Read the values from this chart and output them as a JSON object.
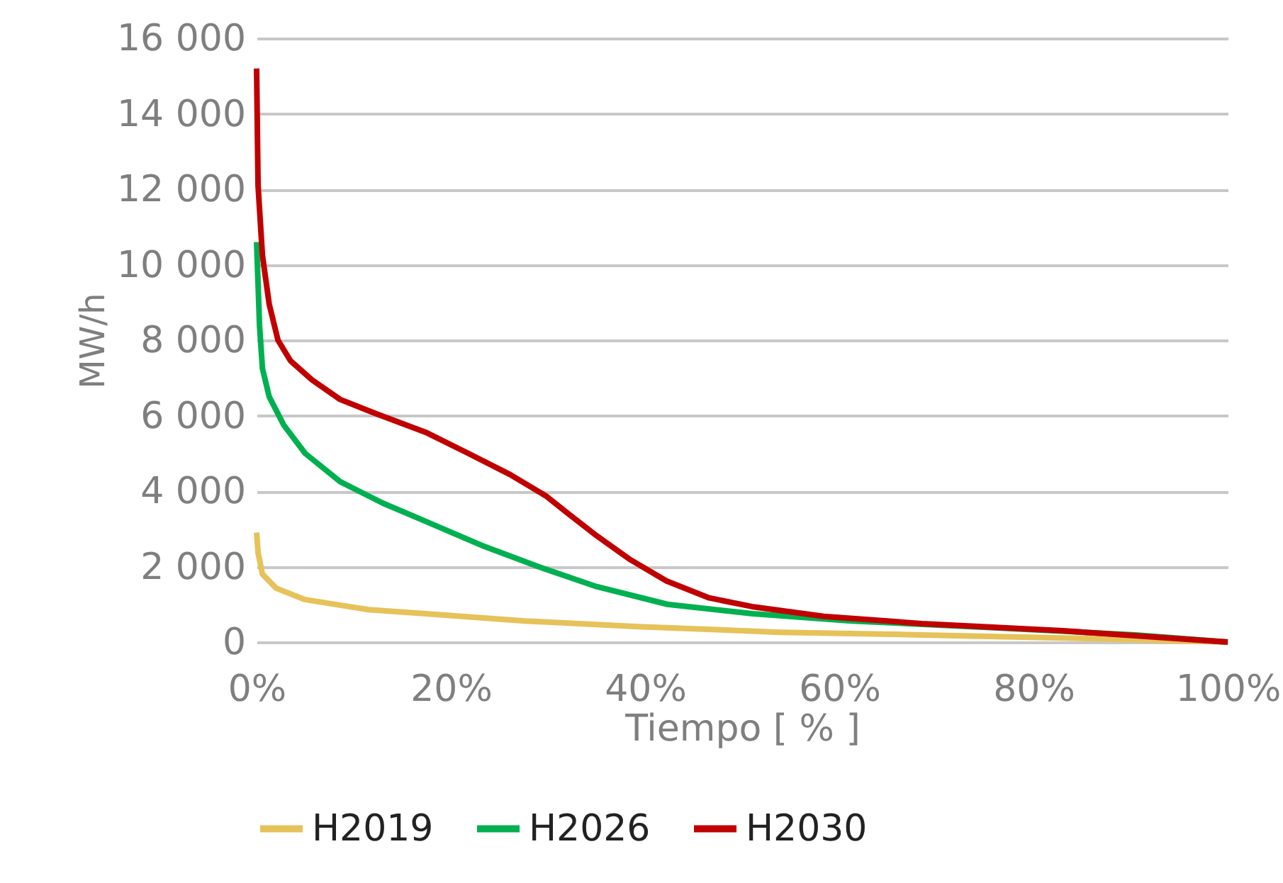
{
  "chart_data": {
    "type": "line",
    "xlabel": "Tiempo [ % ]",
    "ylabel": "MW/h",
    "xlim": [
      0,
      100
    ],
    "ylim": [
      0,
      16000
    ],
    "xticks": [
      {
        "value": 0,
        "label": "0%"
      },
      {
        "value": 20,
        "label": "20%"
      },
      {
        "value": 40,
        "label": "40%"
      },
      {
        "value": 60,
        "label": "60%"
      },
      {
        "value": 80,
        "label": "80%"
      },
      {
        "value": 100,
        "label": "100%"
      }
    ],
    "yticks": [
      {
        "value": 0,
        "label": "0"
      },
      {
        "value": 2000,
        "label": "2 000"
      },
      {
        "value": 4000,
        "label": "4 000"
      },
      {
        "value": 6000,
        "label": "6 000"
      },
      {
        "value": 8000,
        "label": "8 000"
      },
      {
        "value": 10000,
        "label": "10 000"
      },
      {
        "value": 12000,
        "label": "12 000"
      },
      {
        "value": 14000,
        "label": "14 000"
      },
      {
        "value": 16000,
        "label": "16 000"
      }
    ],
    "grid": "y",
    "legend": "bottom",
    "marker": "none",
    "line_style": "solid",
    "series": [
      {
        "name": "H2019",
        "color": "#e6c25a",
        "x": [
          0,
          0.15,
          0.6,
          2,
          4.9,
          11.5,
          17.4,
          27.6,
          39.3,
          53.9,
          68.5,
          83,
          100
        ],
        "values": [
          2900,
          2370,
          1800,
          1430,
          1130,
          860,
          750,
          560,
          410,
          260,
          190,
          110,
          0
        ]
      },
      {
        "name": "H2026",
        "color": "#00b050",
        "x": [
          0,
          0.15,
          0.3,
          0.6,
          1.3,
          2.8,
          5.0,
          8.6,
          13,
          17.4,
          23.2,
          29,
          35,
          42.3,
          51.1,
          61.3,
          75.9,
          90.5,
          100
        ],
        "values": [
          10600,
          9500,
          8400,
          7250,
          6500,
          5750,
          5000,
          4250,
          3680,
          3200,
          2560,
          2000,
          1470,
          1000,
          750,
          560,
          380,
          190,
          0
        ]
      },
      {
        "name": "H2030",
        "color": "#c00000",
        "x": [
          0,
          0.15,
          0.6,
          1.3,
          2.2,
          3.5,
          5.7,
          8.6,
          12.3,
          17.4,
          21.8,
          26.1,
          29.8,
          32,
          35,
          38.5,
          42.2,
          46.6,
          51,
          58.4,
          68.5,
          83,
          100
        ],
        "values": [
          15200,
          12100,
          10250,
          8950,
          8000,
          7450,
          6950,
          6430,
          6050,
          5560,
          5000,
          4440,
          3870,
          3420,
          2820,
          2180,
          1620,
          1170,
          940,
          680,
          490,
          300,
          0
        ]
      }
    ]
  }
}
